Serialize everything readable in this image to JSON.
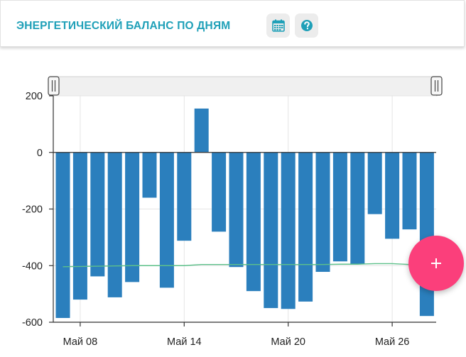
{
  "header": {
    "title": "ЭНЕРГЕТИЧЕСКИЙ БАЛАНС ПО ДНЯМ",
    "calendar_icon": "calendar-icon",
    "help_icon": "question-circle-icon"
  },
  "colors": {
    "accent": "#1fa0b8",
    "bar": "#2b7fbd",
    "line": "#5dc08a",
    "fab": "#fb3f7b",
    "icon": "#1fa0b8"
  },
  "fab": {
    "icon": "plus-icon"
  },
  "chart_data": {
    "type": "bar",
    "x_tick_labels": [
      "Май 08",
      "Май 14",
      "Май 20",
      "Май 26"
    ],
    "x_tick_index": [
      1,
      7,
      13,
      19
    ],
    "y_tick_labels": [
      "200",
      "0",
      "-200",
      "-400",
      "-600"
    ],
    "y_ticks": [
      200,
      0,
      -200,
      -400,
      -600
    ],
    "ylim": [
      -600,
      200
    ],
    "values": [
      -585,
      -520,
      -438,
      -512,
      -458,
      -160,
      -478,
      -312,
      155,
      -280,
      -405,
      -490,
      -550,
      -553,
      -527,
      -422,
      -385,
      -395,
      -218,
      -305,
      -272,
      -578
    ],
    "series": [
      {
        "type": "line",
        "values": [
          -404,
          -403,
          -402,
          -401,
          -400,
          -400,
          -400,
          -400,
          -396,
          -396,
          -396,
          -396,
          -396,
          -396,
          -396,
          -396,
          -395,
          -395,
          -393,
          -393,
          -396,
          -400
        ]
      }
    ],
    "grid": true,
    "navigator": true
  }
}
